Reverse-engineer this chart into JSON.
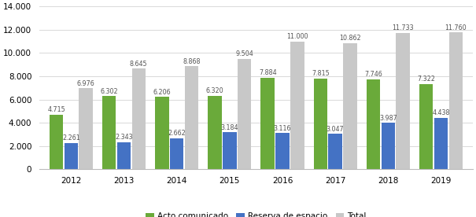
{
  "years": [
    "2012",
    "2013",
    "2014",
    "2015",
    "2016",
    "2017",
    "2018",
    "2019"
  ],
  "acto_comunicado": [
    4715,
    6302,
    6206,
    6320,
    7884,
    7815,
    7746,
    7322
  ],
  "reserva_espacio": [
    2261,
    2343,
    2662,
    3184,
    3116,
    3047,
    3987,
    4438
  ],
  "total": [
    6976,
    8645,
    8868,
    9504,
    11000,
    10862,
    11733,
    11760
  ],
  "color_acto": "#6aaa3a",
  "color_reserva": "#4472c4",
  "color_total": "#c8c8c8",
  "legend_labels": [
    "Acto comunicado",
    "Reserva de espacio",
    "Total"
  ],
  "ylim": [
    0,
    14000
  ],
  "yticks": [
    0,
    2000,
    4000,
    6000,
    8000,
    10000,
    12000,
    14000
  ],
  "bar_width": 0.26,
  "bar_gap": 0.02,
  "label_fontsize": 5.8,
  "tick_fontsize": 7.5,
  "legend_fontsize": 7.5
}
